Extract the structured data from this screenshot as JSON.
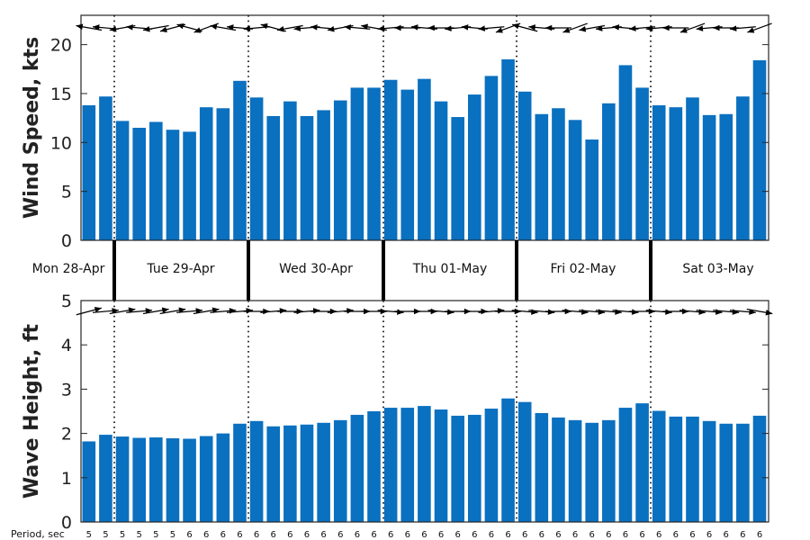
{
  "colors": {
    "bar": "#0a70c0",
    "axis": "#262626",
    "text": "#222222"
  },
  "days": [
    "Mon 28-Apr",
    "Tue 29-Apr",
    "Wed 30-Apr",
    "Thu 01-May",
    "Fri 02-May",
    "Sat 03-May"
  ],
  "period_label": "Period, sec",
  "chart_data": [
    {
      "type": "bar",
      "ylabel": "Wind Speed, kts",
      "ylim": [
        0,
        23
      ],
      "yticks": [
        0,
        5,
        10,
        15,
        20
      ],
      "values": [
        13.8,
        14.7,
        12.2,
        11.5,
        12.1,
        11.3,
        11.1,
        13.6,
        13.5,
        16.3,
        14.6,
        12.7,
        14.2,
        12.7,
        13.3,
        14.3,
        15.6,
        15.6,
        16.4,
        15.4,
        16.5,
        14.2,
        12.6,
        14.9,
        16.8,
        18.5,
        15.2,
        12.9,
        13.5,
        12.3,
        10.3,
        14.0,
        17.9,
        15.6,
        13.8,
        13.6,
        14.6,
        12.8,
        12.9,
        14.7,
        18.4
      ],
      "direction_arrows_deg": [
        190,
        185,
        170,
        185,
        170,
        165,
        195,
        160,
        190,
        185,
        175,
        195,
        170,
        175,
        185,
        170,
        185,
        190,
        175,
        180,
        185,
        180,
        175,
        185,
        175,
        160,
        195,
        185,
        180,
        160,
        170,
        175,
        185,
        175,
        175,
        180,
        160,
        175,
        180,
        175,
        160
      ],
      "grid": false
    },
    {
      "type": "bar",
      "ylabel": "Wave Height, ft",
      "ylim": [
        0,
        5
      ],
      "yticks": [
        0,
        1,
        2,
        3,
        4,
        5
      ],
      "values": [
        1.82,
        1.97,
        1.93,
        1.9,
        1.91,
        1.89,
        1.88,
        1.94,
        2.0,
        2.22,
        2.28,
        2.16,
        2.18,
        2.2,
        2.24,
        2.3,
        2.42,
        2.5,
        2.58,
        2.58,
        2.62,
        2.54,
        2.4,
        2.42,
        2.56,
        2.79,
        2.71,
        2.46,
        2.36,
        2.3,
        2.24,
        2.3,
        2.58,
        2.68,
        2.51,
        2.38,
        2.38,
        2.28,
        2.22,
        2.22,
        2.4
      ],
      "direction_arrows_deg": [
        -15,
        -5,
        -10,
        -5,
        -10,
        -10,
        -5,
        -10,
        -5,
        -5,
        0,
        -5,
        0,
        -5,
        0,
        -5,
        0,
        0,
        5,
        0,
        0,
        5,
        0,
        0,
        -5,
        0,
        5,
        5,
        0,
        5,
        5,
        5,
        5,
        0,
        5,
        0,
        5,
        5,
        5,
        5,
        10
      ],
      "periods": [
        5,
        5,
        5,
        5,
        5,
        5,
        6,
        6,
        6,
        6,
        6,
        6,
        6,
        6,
        6,
        6,
        6,
        6,
        6,
        6,
        6,
        6,
        6,
        6,
        6,
        6,
        6,
        6,
        6,
        6,
        6,
        6,
        6,
        6,
        6,
        6,
        6,
        6,
        6,
        6,
        6
      ],
      "grid": false
    }
  ]
}
